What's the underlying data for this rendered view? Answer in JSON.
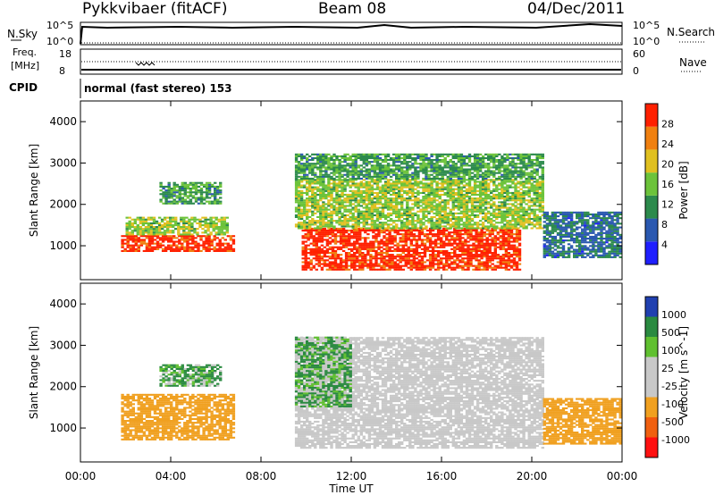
{
  "header": {
    "station": "Pykkvibaer (fitACF)",
    "beam": "Beam 08",
    "date": "04/Dec/2011"
  },
  "sky_panel": {
    "left_label": "N.Sky",
    "right_label": "N.Search",
    "left_ticks": [
      "10^5",
      "10^0"
    ],
    "right_ticks": [
      "10^5",
      "10^0"
    ]
  },
  "freq_panel": {
    "left_label_1": "Freq.",
    "left_label_2": "[MHz]",
    "right_label": "Nave",
    "left_ticks": [
      "18",
      "8"
    ],
    "right_ticks": [
      "60",
      "0"
    ]
  },
  "cpid": {
    "label": "CPID",
    "mode_text": "normal (fast stereo) 153"
  },
  "x_axis": {
    "label": "Time UT",
    "ticks": [
      "00:00",
      "04:00",
      "08:00",
      "12:00",
      "16:00",
      "20:00",
      "00:00"
    ]
  },
  "colors": {
    "power": [
      "#1f1fff",
      "#2a58b0",
      "#2c8a4c",
      "#6cc33a",
      "#e0c020",
      "#f08010",
      "#ff2000"
    ],
    "velocity": [
      "#ff1010",
      "#f06010",
      "#f0a020",
      "#c8c8c8",
      "#c8c8c8",
      "#60c030",
      "#2a8a40",
      "#2040b0"
    ]
  },
  "chart_data": [
    {
      "type": "heatmap",
      "title": "Power",
      "ylabel": "Slant Range [km]",
      "xlabel": "",
      "x_range": [
        "00:00",
        "24:00"
      ],
      "ylim": [
        180,
        4500
      ],
      "y_ticks": [
        "1000",
        "2000",
        "3000",
        "4000"
      ],
      "colorbar": {
        "label": "Power [dB]",
        "ticks": [
          "4",
          "8",
          "12",
          "16",
          "20",
          "24",
          "28"
        ],
        "range": [
          0,
          30
        ]
      },
      "regions": [
        {
          "t0": 1.8,
          "t1": 6.8,
          "r0": 850,
          "r1": 1250,
          "level": 28
        },
        {
          "t0": 2.0,
          "t1": 6.5,
          "r0": 1250,
          "r1": 1700,
          "level": 16
        },
        {
          "t0": 3.5,
          "t1": 6.2,
          "r0": 2000,
          "r1": 2500,
          "level": 12
        },
        {
          "t0": 9.8,
          "t1": 19.5,
          "r0": 400,
          "r1": 1400,
          "level": 28
        },
        {
          "t0": 9.5,
          "t1": 20.5,
          "r0": 1400,
          "r1": 2600,
          "level": 16
        },
        {
          "t0": 9.5,
          "t1": 20.5,
          "r0": 2600,
          "r1": 3200,
          "level": 12
        },
        {
          "t0": 20.5,
          "t1": 23.9,
          "r0": 700,
          "r1": 1800,
          "level": 8
        }
      ]
    },
    {
      "type": "heatmap",
      "title": "Velocity",
      "ylabel": "Slant Range [km]",
      "xlabel": "Time UT",
      "x_range": [
        "00:00",
        "24:00"
      ],
      "ylim": [
        180,
        4500
      ],
      "y_ticks": [
        "1000",
        "2000",
        "3000",
        "4000"
      ],
      "colorbar": {
        "label": "Velocity [m s^-1]",
        "ticks": [
          "-1000",
          "-500",
          "-100",
          "-25",
          "25",
          "100",
          "500",
          "1000"
        ]
      },
      "regions": [
        {
          "t0": 1.8,
          "t1": 6.8,
          "r0": 700,
          "r1": 1800,
          "level": -300
        },
        {
          "t0": 3.5,
          "t1": 6.2,
          "r0": 2000,
          "r1": 2500,
          "level": 100
        },
        {
          "t0": 9.5,
          "t1": 20.5,
          "r0": 500,
          "r1": 3200,
          "level": 0
        },
        {
          "t0": 9.5,
          "t1": 12.0,
          "r0": 1500,
          "r1": 3200,
          "level": 100
        },
        {
          "t0": 20.5,
          "t1": 23.9,
          "r0": 600,
          "r1": 1700,
          "level": -300
        }
      ]
    }
  ]
}
